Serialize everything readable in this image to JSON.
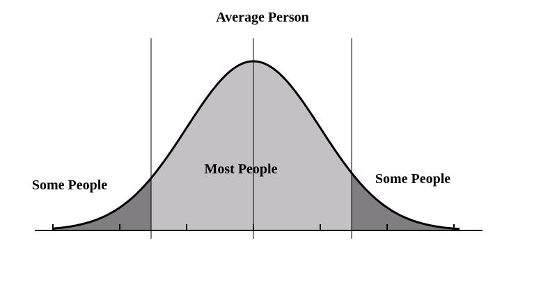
{
  "diagram": {
    "type": "normal-distribution",
    "labels": {
      "top": "Average Person",
      "center": "Most People",
      "left": "Some People",
      "right": "Some People"
    },
    "colors": {
      "center_fill": "#c3c1c4",
      "tail_fill": "#807e81",
      "line": "#000000"
    },
    "tick_count": 7
  }
}
